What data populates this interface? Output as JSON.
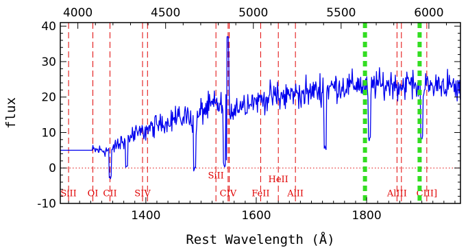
{
  "chart_data": {
    "type": "line",
    "xlabel": "Rest Wavelength (Å)",
    "ylabel": "flux",
    "x_bottom_range": [
      1245,
      1970
    ],
    "x_top_range": [
      3900,
      6180
    ],
    "ylim": [
      -10,
      41
    ],
    "x_bottom_ticks": [
      1400,
      1600,
      1800
    ],
    "x_top_ticks": [
      4000,
      4500,
      5000,
      5500,
      6000
    ],
    "y_ticks": [
      -10,
      0,
      10,
      20,
      30,
      40
    ],
    "grid": false,
    "zero_line": {
      "y": 0,
      "style": "dotted",
      "color": "#e00000"
    },
    "spectrum": {
      "color": "#0000ee",
      "flat_segment": {
        "x": [
          1245,
          1303
        ],
        "y": 5
      },
      "x": [
        1303,
        1315,
        1330,
        1345,
        1360,
        1375,
        1390,
        1405,
        1420,
        1435,
        1450,
        1465,
        1480,
        1490,
        1500,
        1515,
        1530,
        1540,
        1545,
        1548,
        1552,
        1560,
        1575,
        1590,
        1605,
        1620,
        1635,
        1650,
        1665,
        1680,
        1695,
        1710,
        1725,
        1740,
        1755,
        1770,
        1785,
        1800,
        1815,
        1830,
        1845,
        1860,
        1875,
        1890,
        1905,
        1920,
        1935,
        1950,
        1965,
        1970
      ],
      "y": [
        5,
        5,
        5,
        6,
        8,
        9,
        10,
        11,
        12,
        13,
        14,
        14,
        15,
        12,
        16,
        17,
        18,
        17,
        20,
        37,
        16,
        17,
        18,
        19,
        19,
        20,
        20,
        20,
        21,
        21,
        21,
        22,
        22,
        23,
        23,
        23,
        24,
        22,
        24,
        23,
        24,
        23,
        24,
        23,
        23,
        23,
        24,
        23,
        22,
        22
      ],
      "noise_amplitude": 4,
      "absorption_features": [
        {
          "x": 1335,
          "y": -4
        },
        {
          "x": 1365,
          "y": 0
        },
        {
          "x": 1488,
          "y": -1
        },
        {
          "x": 1542,
          "y": 0
        },
        {
          "x": 1548,
          "y": 1
        },
        {
          "x": 1725,
          "y": 5
        },
        {
          "x": 1805,
          "y": 7
        },
        {
          "x": 1900,
          "y": 8
        }
      ]
    },
    "line_markers": [
      {
        "x": 1260,
        "label": "SiII",
        "label_y": -7,
        "color": "#e00000"
      },
      {
        "x": 1304,
        "label": "OI",
        "label_y": -7,
        "color": "#e00000"
      },
      {
        "x": 1335,
        "label": "CII",
        "label_y": -7,
        "color": "#e00000"
      },
      {
        "x": 1394,
        "label": "SIV",
        "label_y": -7,
        "color": "#e00000"
      },
      {
        "x": 1403,
        "label": "",
        "label_y": -7,
        "color": "#e00000"
      },
      {
        "x": 1527,
        "label": "SiII",
        "label_y": -2,
        "color": "#e00000"
      },
      {
        "x": 1549,
        "label": "CIV",
        "label_y": -7,
        "color": "#e00000"
      },
      {
        "x": 1551,
        "label": "",
        "label_y": -7,
        "color": "#e00000"
      },
      {
        "x": 1608,
        "label": "FeII",
        "label_y": -7,
        "color": "#e00000"
      },
      {
        "x": 1640,
        "label": "HeII",
        "label_y": -3,
        "color": "#e00000"
      },
      {
        "x": 1671,
        "label": "AlII",
        "label_y": -7,
        "color": "#e00000"
      },
      {
        "x": 1855,
        "label": "AlIII",
        "label_y": -7,
        "color": "#e00000"
      },
      {
        "x": 1863,
        "label": "",
        "label_y": -7,
        "color": "#e00000"
      },
      {
        "x": 1909,
        "label": "CIII]",
        "label_y": -7,
        "color": "#e00000"
      }
    ],
    "sky_lines": [
      {
        "x": 1797,
        "color": "#33dd22"
      },
      {
        "x": 1896,
        "color": "#33dd22"
      }
    ]
  }
}
